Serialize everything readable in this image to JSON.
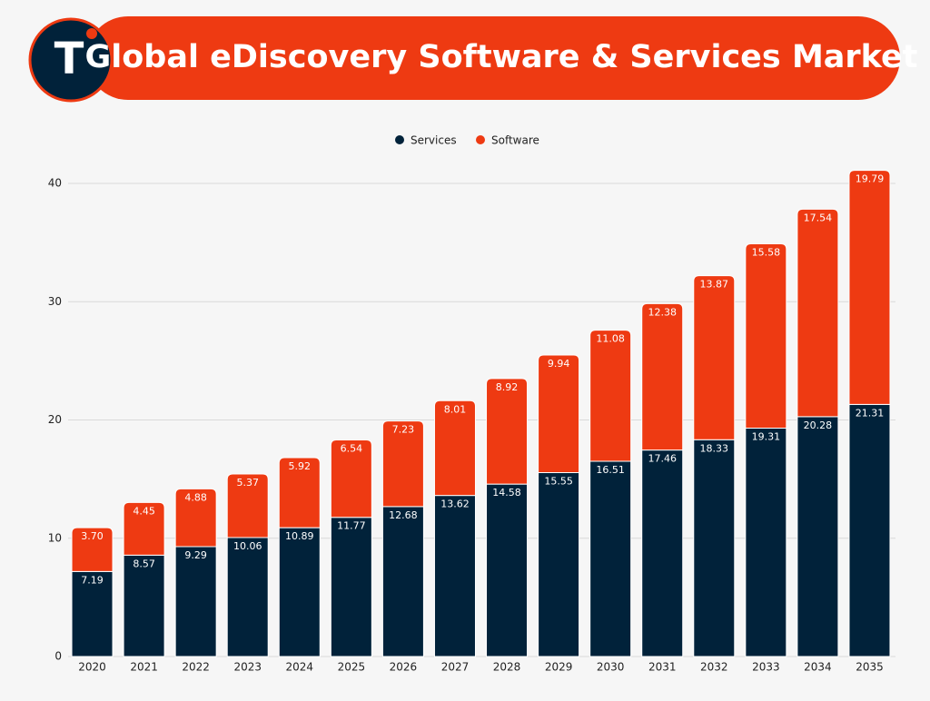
{
  "header": {
    "logo": "T"
  },
  "chart_data": {
    "type": "stacked_bar",
    "title": "Global eDiscovery Software & Services Market",
    "categories": [
      "2020",
      "2021",
      "2022",
      "2023",
      "2024",
      "2025",
      "2026",
      "2027",
      "2028",
      "2029",
      "2030",
      "2031",
      "2032",
      "2033",
      "2034",
      "2035"
    ],
    "series": [
      {
        "name": "Services",
        "color": "#01223a",
        "values": [
          7.19,
          8.57,
          9.29,
          10.06,
          10.89,
          11.77,
          12.68,
          13.62,
          14.58,
          15.55,
          16.51,
          17.46,
          18.33,
          19.31,
          20.28,
          21.31
        ],
        "value_labels": [
          "7.19",
          "8.57",
          "9.29",
          "10.06",
          "10.89",
          "11.77",
          "12.68",
          "13.62",
          "14.58",
          "15.55",
          "16.51",
          "17.46",
          "18.33",
          "19.31",
          "20.28",
          "21.31"
        ]
      },
      {
        "name": "Software",
        "color": "#ee3a12",
        "values": [
          3.7,
          4.45,
          4.88,
          5.37,
          5.92,
          6.54,
          7.23,
          8.01,
          8.92,
          9.94,
          11.08,
          12.38,
          13.87,
          15.58,
          17.54,
          19.79
        ],
        "value_labels": [
          "3.70",
          "4.45",
          "4.88",
          "5.37",
          "5.92",
          "6.54",
          "7.23",
          "8.01",
          "8.92",
          "9.94",
          "11.08",
          "12.38",
          "13.87",
          "15.58",
          "17.54",
          "19.79"
        ]
      }
    ],
    "ylim": [
      0,
      40
    ],
    "yticks": [
      0,
      10,
      20,
      30,
      40
    ],
    "grid": true,
    "legend": "top"
  }
}
